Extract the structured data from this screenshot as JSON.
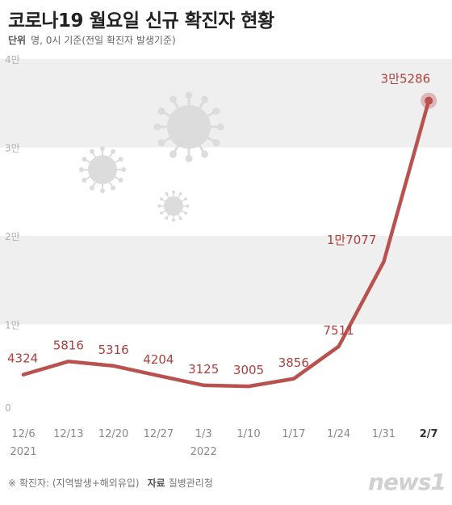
{
  "header": {
    "title": "코로나19 월요일 신규 확진자 현황",
    "unit_label": "단위",
    "unit_text": "명, 0시 기준(전일 확진자 발생기준)"
  },
  "footer": {
    "note": "※ 확진자: (지역발생+해외유입)",
    "source_label": "자료",
    "source": "질병관리청",
    "logo": "news1"
  },
  "colors": {
    "line": "#b9514f",
    "label": "#a9413e",
    "band": "#efefef",
    "axis_text": "#b0b0b0",
    "virus": "#dcdcdc"
  },
  "chart_data": {
    "type": "line",
    "title": "코로나19 월요일 신규 확진자 현황",
    "xlabel": "",
    "ylabel": "",
    "ylim": [
      0,
      40000
    ],
    "yticks": [
      {
        "value": 0,
        "label": "0"
      },
      {
        "value": 10000,
        "label": "1만"
      },
      {
        "value": 20000,
        "label": "2만"
      },
      {
        "value": 30000,
        "label": "3만"
      },
      {
        "value": 40000,
        "label": "4만"
      }
    ],
    "categories": [
      "12/6",
      "12/13",
      "12/20",
      "12/27",
      "1/3",
      "1/10",
      "1/17",
      "1/24",
      "1/31",
      "2/7"
    ],
    "year_labels": [
      {
        "index": 0,
        "label": "2021"
      },
      {
        "index": 4,
        "label": "2022"
      }
    ],
    "highlight_category": "2/7",
    "series": [
      {
        "values": [
          4324,
          5816,
          5316,
          4204,
          3125,
          3005,
          3856,
          7511,
          17077,
          35286
        ],
        "value_labels": [
          "4324",
          "5816",
          "5316",
          "4204",
          "3125",
          "3005",
          "3856",
          "7511",
          "1만7077",
          "3만5286"
        ]
      }
    ],
    "grid": false,
    "background_bands": true
  }
}
